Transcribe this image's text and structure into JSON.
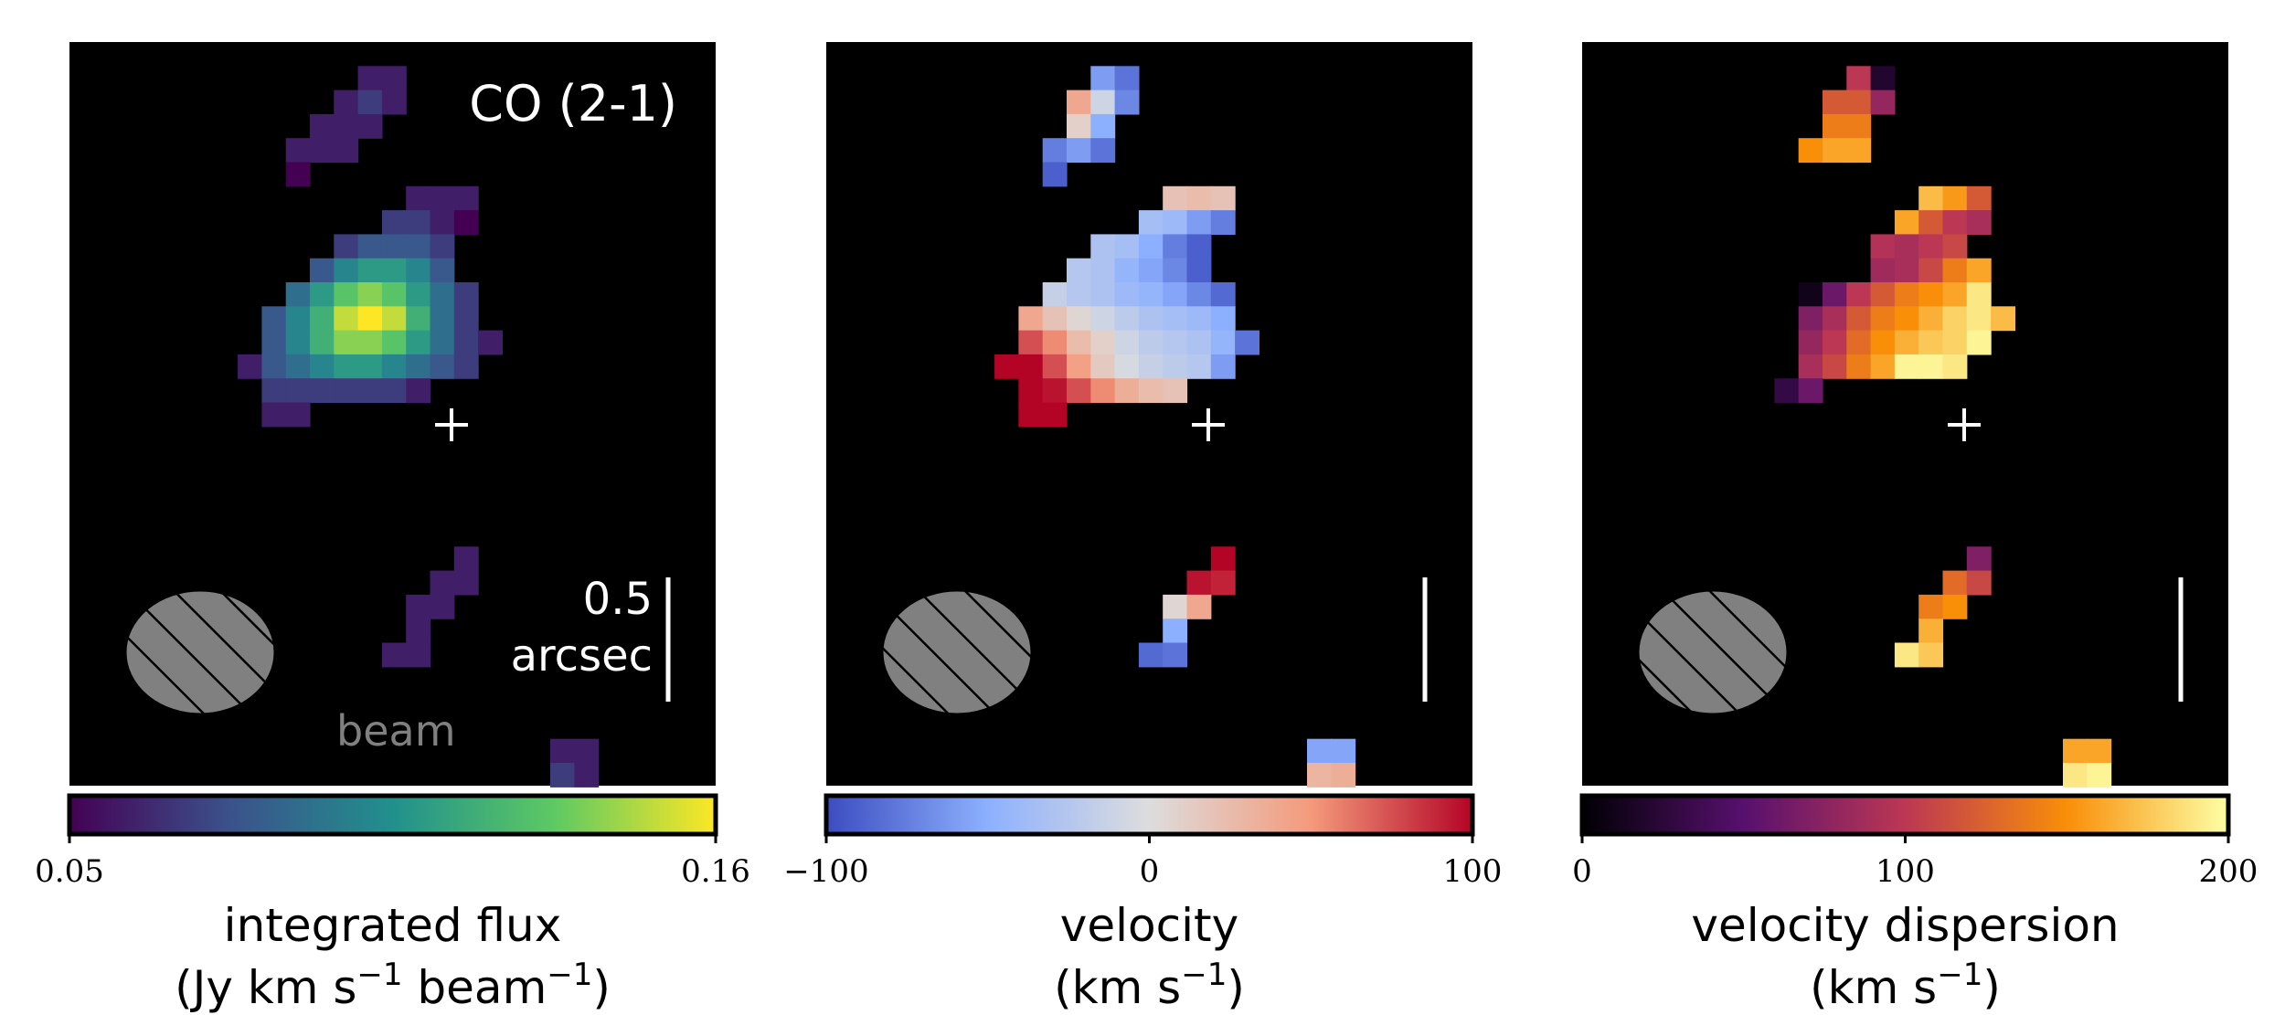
{
  "chart_data": [
    {
      "type": "heatmap",
      "quantity": "integrated flux",
      "annotation": "CO (2-1)",
      "beam_label": "beam",
      "scalebar_value": "0.5",
      "scalebar_unit": "arcsec",
      "colormap": "viridis",
      "colorbar": {
        "min": 0.05,
        "max": 0.16,
        "tick_labels": [
          "0.05",
          "0.16"
        ],
        "label_line1": "integrated flux",
        "label_line2": "(Jy km s",
        "label_line2_sup": "−1",
        "label_line2_mid": " beam",
        "label_line2_sup2": "−1",
        "label_line2_end": ")"
      },
      "pixels": [
        [
          12,
          1,
          0.06
        ],
        [
          13,
          1,
          0.06
        ],
        [
          11,
          2,
          0.06
        ],
        [
          12,
          2,
          0.07
        ],
        [
          13,
          2,
          0.06
        ],
        [
          10,
          3,
          0.06
        ],
        [
          11,
          3,
          0.06
        ],
        [
          12,
          3,
          0.06
        ],
        [
          9,
          4,
          0.06
        ],
        [
          10,
          4,
          0.06
        ],
        [
          11,
          4,
          0.06
        ],
        [
          9,
          5,
          0.05
        ],
        [
          14,
          6,
          0.06
        ],
        [
          15,
          6,
          0.06
        ],
        [
          16,
          6,
          0.06
        ],
        [
          13,
          7,
          0.07
        ],
        [
          14,
          7,
          0.07
        ],
        [
          15,
          7,
          0.06
        ],
        [
          16,
          7,
          0.05
        ],
        [
          11,
          8,
          0.07
        ],
        [
          12,
          8,
          0.08
        ],
        [
          13,
          8,
          0.08
        ],
        [
          14,
          8,
          0.08
        ],
        [
          15,
          8,
          0.07
        ],
        [
          10,
          9,
          0.08
        ],
        [
          11,
          9,
          0.1
        ],
        [
          12,
          9,
          0.11
        ],
        [
          13,
          9,
          0.11
        ],
        [
          14,
          9,
          0.1
        ],
        [
          15,
          9,
          0.08
        ],
        [
          9,
          10,
          0.09
        ],
        [
          10,
          10,
          0.11
        ],
        [
          11,
          10,
          0.13
        ],
        [
          12,
          10,
          0.14
        ],
        [
          13,
          10,
          0.13
        ],
        [
          14,
          10,
          0.11
        ],
        [
          15,
          10,
          0.09
        ],
        [
          16,
          10,
          0.07
        ],
        [
          8,
          11,
          0.08
        ],
        [
          9,
          11,
          0.1
        ],
        [
          10,
          11,
          0.12
        ],
        [
          11,
          11,
          0.15
        ],
        [
          12,
          11,
          0.16
        ],
        [
          13,
          11,
          0.15
        ],
        [
          14,
          11,
          0.12
        ],
        [
          15,
          11,
          0.09
        ],
        [
          16,
          11,
          0.07
        ],
        [
          8,
          12,
          0.08
        ],
        [
          9,
          12,
          0.1
        ],
        [
          10,
          12,
          0.12
        ],
        [
          11,
          12,
          0.14
        ],
        [
          12,
          12,
          0.14
        ],
        [
          13,
          12,
          0.13
        ],
        [
          14,
          12,
          0.11
        ],
        [
          15,
          12,
          0.09
        ],
        [
          16,
          12,
          0.07
        ],
        [
          17,
          12,
          0.06
        ],
        [
          7,
          13,
          0.06
        ],
        [
          8,
          13,
          0.08
        ],
        [
          9,
          13,
          0.09
        ],
        [
          10,
          13,
          0.1
        ],
        [
          11,
          13,
          0.11
        ],
        [
          12,
          13,
          0.11
        ],
        [
          13,
          13,
          0.1
        ],
        [
          14,
          13,
          0.09
        ],
        [
          15,
          13,
          0.08
        ],
        [
          16,
          13,
          0.07
        ],
        [
          8,
          14,
          0.07
        ],
        [
          9,
          14,
          0.07
        ],
        [
          10,
          14,
          0.07
        ],
        [
          11,
          14,
          0.07
        ],
        [
          12,
          14,
          0.07
        ],
        [
          13,
          14,
          0.07
        ],
        [
          14,
          14,
          0.06
        ],
        [
          8,
          15,
          0.06
        ],
        [
          9,
          15,
          0.06
        ],
        [
          16,
          21,
          0.06
        ],
        [
          15,
          22,
          0.06
        ],
        [
          16,
          22,
          0.06
        ],
        [
          14,
          23,
          0.06
        ],
        [
          15,
          23,
          0.06
        ],
        [
          14,
          24,
          0.06
        ],
        [
          13,
          25,
          0.06
        ],
        [
          14,
          25,
          0.06
        ],
        [
          20,
          29,
          0.06
        ],
        [
          21,
          29,
          0.06
        ],
        [
          20,
          30,
          0.07
        ],
        [
          21,
          30,
          0.06
        ]
      ]
    },
    {
      "type": "heatmap",
      "quantity": "velocity",
      "colormap": "coolwarm",
      "colorbar": {
        "min": -100,
        "max": 100,
        "tick_labels": [
          "−100",
          "0",
          "100"
        ],
        "label_line1": "velocity",
        "label_line2": "(km s",
        "label_line2_sup": "−1",
        "label_line2_end": ")"
      },
      "pixels": [
        [
          11,
          1,
          -60
        ],
        [
          12,
          1,
          -80
        ],
        [
          10,
          2,
          40
        ],
        [
          11,
          2,
          -10
        ],
        [
          12,
          2,
          -70
        ],
        [
          10,
          3,
          10
        ],
        [
          11,
          3,
          -50
        ],
        [
          9,
          4,
          -75
        ],
        [
          10,
          4,
          -60
        ],
        [
          11,
          4,
          -80
        ],
        [
          9,
          5,
          -90
        ],
        [
          14,
          6,
          20
        ],
        [
          15,
          6,
          25
        ],
        [
          16,
          6,
          20
        ],
        [
          13,
          7,
          -35
        ],
        [
          14,
          7,
          -40
        ],
        [
          15,
          7,
          -60
        ],
        [
          16,
          7,
          -75
        ],
        [
          11,
          8,
          -30
        ],
        [
          12,
          8,
          -35
        ],
        [
          13,
          8,
          -50
        ],
        [
          14,
          8,
          -75
        ],
        [
          15,
          8,
          -90
        ],
        [
          10,
          9,
          -25
        ],
        [
          11,
          9,
          -30
        ],
        [
          12,
          9,
          -45
        ],
        [
          13,
          9,
          -55
        ],
        [
          14,
          9,
          -70
        ],
        [
          15,
          9,
          -90
        ],
        [
          9,
          10,
          -15
        ],
        [
          10,
          10,
          -25
        ],
        [
          11,
          10,
          -30
        ],
        [
          12,
          10,
          -40
        ],
        [
          13,
          10,
          -45
        ],
        [
          14,
          10,
          -55
        ],
        [
          15,
          10,
          -70
        ],
        [
          16,
          10,
          -85
        ],
        [
          8,
          11,
          40
        ],
        [
          9,
          11,
          20
        ],
        [
          10,
          11,
          5
        ],
        [
          11,
          11,
          -10
        ],
        [
          12,
          11,
          -20
        ],
        [
          13,
          11,
          -30
        ],
        [
          14,
          11,
          -35
        ],
        [
          15,
          11,
          -40
        ],
        [
          16,
          11,
          -50
        ],
        [
          8,
          12,
          75
        ],
        [
          9,
          12,
          55
        ],
        [
          10,
          12,
          25
        ],
        [
          11,
          12,
          10
        ],
        [
          12,
          12,
          -10
        ],
        [
          13,
          12,
          -20
        ],
        [
          14,
          12,
          -25
        ],
        [
          15,
          12,
          -30
        ],
        [
          16,
          12,
          -45
        ],
        [
          17,
          12,
          -80
        ],
        [
          7,
          13,
          100
        ],
        [
          8,
          13,
          100
        ],
        [
          9,
          13,
          75
        ],
        [
          10,
          13,
          45
        ],
        [
          11,
          13,
          15
        ],
        [
          12,
          13,
          -5
        ],
        [
          13,
          13,
          -15
        ],
        [
          14,
          13,
          -20
        ],
        [
          15,
          13,
          -25
        ],
        [
          16,
          13,
          -60
        ],
        [
          8,
          14,
          100
        ],
        [
          9,
          14,
          95
        ],
        [
          10,
          14,
          75
        ],
        [
          11,
          14,
          55
        ],
        [
          12,
          14,
          35
        ],
        [
          13,
          14,
          25
        ],
        [
          14,
          14,
          20
        ],
        [
          8,
          15,
          100
        ],
        [
          9,
          15,
          100
        ],
        [
          16,
          21,
          100
        ],
        [
          15,
          22,
          95
        ],
        [
          16,
          22,
          90
        ],
        [
          14,
          23,
          5
        ],
        [
          15,
          23,
          40
        ],
        [
          14,
          24,
          -50
        ],
        [
          13,
          25,
          -85
        ],
        [
          14,
          25,
          -80
        ],
        [
          20,
          29,
          -55
        ],
        [
          21,
          29,
          -55
        ],
        [
          20,
          30,
          30
        ],
        [
          21,
          30,
          35
        ]
      ]
    },
    {
      "type": "heatmap",
      "quantity": "velocity dispersion",
      "colormap": "inferno",
      "colorbar": {
        "min": 0,
        "max": 200,
        "tick_labels": [
          "0",
          "100",
          "200"
        ],
        "label_line1": "velocity dispersion",
        "label_line2": "(km s",
        "label_line2_sup": "−1",
        "label_line2_end": ")"
      },
      "pixels": [
        [
          11,
          1,
          100
        ],
        [
          12,
          1,
          20
        ],
        [
          10,
          2,
          120
        ],
        [
          11,
          2,
          120
        ],
        [
          12,
          2,
          80
        ],
        [
          10,
          3,
          140
        ],
        [
          11,
          3,
          140
        ],
        [
          9,
          4,
          150
        ],
        [
          10,
          4,
          160
        ],
        [
          11,
          4,
          160
        ],
        [
          14,
          6,
          170
        ],
        [
          15,
          6,
          155
        ],
        [
          16,
          6,
          120
        ],
        [
          13,
          7,
          160
        ],
        [
          14,
          7,
          120
        ],
        [
          15,
          7,
          100
        ],
        [
          16,
          7,
          90
        ],
        [
          12,
          8,
          95
        ],
        [
          13,
          8,
          90
        ],
        [
          14,
          8,
          100
        ],
        [
          15,
          8,
          110
        ],
        [
          12,
          9,
          85
        ],
        [
          13,
          9,
          90
        ],
        [
          14,
          9,
          110
        ],
        [
          15,
          9,
          140
        ],
        [
          16,
          9,
          160
        ],
        [
          9,
          10,
          10
        ],
        [
          10,
          10,
          60
        ],
        [
          11,
          10,
          100
        ],
        [
          12,
          10,
          120
        ],
        [
          13,
          10,
          140
        ],
        [
          14,
          10,
          150
        ],
        [
          15,
          10,
          160
        ],
        [
          16,
          10,
          190
        ],
        [
          9,
          11,
          70
        ],
        [
          10,
          11,
          90
        ],
        [
          11,
          11,
          120
        ],
        [
          12,
          11,
          140
        ],
        [
          13,
          11,
          150
        ],
        [
          14,
          11,
          165
        ],
        [
          15,
          11,
          180
        ],
        [
          16,
          11,
          190
        ],
        [
          17,
          11,
          170
        ],
        [
          9,
          12,
          80
        ],
        [
          10,
          12,
          100
        ],
        [
          11,
          12,
          130
        ],
        [
          12,
          12,
          150
        ],
        [
          13,
          12,
          165
        ],
        [
          14,
          12,
          175
        ],
        [
          15,
          12,
          180
        ],
        [
          16,
          12,
          195
        ],
        [
          9,
          13,
          90
        ],
        [
          10,
          13,
          110
        ],
        [
          11,
          13,
          140
        ],
        [
          12,
          13,
          160
        ],
        [
          13,
          13,
          195
        ],
        [
          14,
          13,
          195
        ],
        [
          15,
          13,
          190
        ],
        [
          8,
          14,
          30
        ],
        [
          9,
          14,
          60
        ],
        [
          16,
          21,
          70
        ],
        [
          15,
          22,
          130
        ],
        [
          16,
          22,
          110
        ],
        [
          14,
          23,
          140
        ],
        [
          15,
          23,
          150
        ],
        [
          14,
          24,
          165
        ],
        [
          13,
          25,
          190
        ],
        [
          14,
          25,
          175
        ],
        [
          20,
          29,
          160
        ],
        [
          21,
          29,
          160
        ],
        [
          20,
          30,
          190
        ],
        [
          21,
          30,
          195
        ]
      ]
    }
  ]
}
